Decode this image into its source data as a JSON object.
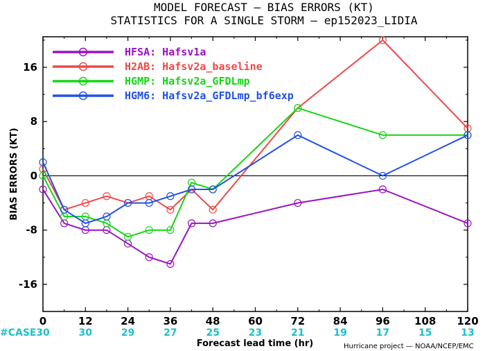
{
  "title_line1": "MODEL FORECAST — BIAS ERRORS (KT)",
  "title_line2": "STATISTICS FOR A SINGLE STORM — ep152023_LIDIA",
  "credit": "Hurricane project — NOAA/NCEP/EMC",
  "case_label": "#CASE",
  "case_counts": [
    "30",
    "30",
    "29",
    "27",
    "25",
    "23",
    "21",
    "19",
    "17",
    "15",
    "13"
  ],
  "chart_data": {
    "type": "line",
    "xlabel": "Forecast lead time (hr)",
    "ylabel": "BIAS ERRORS (KT)",
    "xlim": [
      0,
      120
    ],
    "ylim": [
      -20,
      20.5
    ],
    "x_ticks": [
      0,
      12,
      24,
      36,
      48,
      60,
      72,
      84,
      96,
      108,
      120
    ],
    "y_ticks": [
      16,
      8,
      0,
      -8,
      -16
    ],
    "zero_line": true,
    "legend_position": "top-left",
    "series": [
      {
        "name": "HFSA: Hafsv1a",
        "color": "#9a12c2",
        "x": [
          0,
          6,
          12,
          18,
          24,
          30,
          36,
          42,
          48,
          72,
          96,
          120
        ],
        "y": [
          -2,
          -7,
          -8,
          -8,
          -10,
          -12,
          -13,
          -7,
          -7,
          -4,
          -2,
          -7
        ]
      },
      {
        "name": "H2AB: Hafsv2a_baseline",
        "color": "#f04848",
        "x": [
          0,
          6,
          12,
          18,
          24,
          30,
          36,
          42,
          48,
          72,
          96,
          120
        ],
        "y": [
          1,
          -5,
          -4,
          -3,
          -4,
          -3,
          -5,
          -2,
          -5,
          10,
          20,
          7
        ]
      },
      {
        "name": "HGMP: Hafsv2a_GFDLmp",
        "color": "#16d516",
        "x": [
          0,
          6,
          12,
          18,
          24,
          30,
          36,
          42,
          48,
          72,
          96,
          120
        ],
        "y": [
          0,
          -6,
          -6,
          -7,
          -9,
          -8,
          -8,
          -1,
          -2,
          10,
          6,
          6
        ]
      },
      {
        "name": "HGM6: Hafsv2a_GFDLmp_bf6exp",
        "color": "#2250e6",
        "x": [
          0,
          6,
          12,
          18,
          24,
          30,
          36,
          42,
          48,
          72,
          96,
          120
        ],
        "y": [
          2,
          -5,
          -7,
          -6,
          -4,
          -4,
          -3,
          -2,
          -2,
          6,
          0,
          6
        ]
      }
    ]
  }
}
